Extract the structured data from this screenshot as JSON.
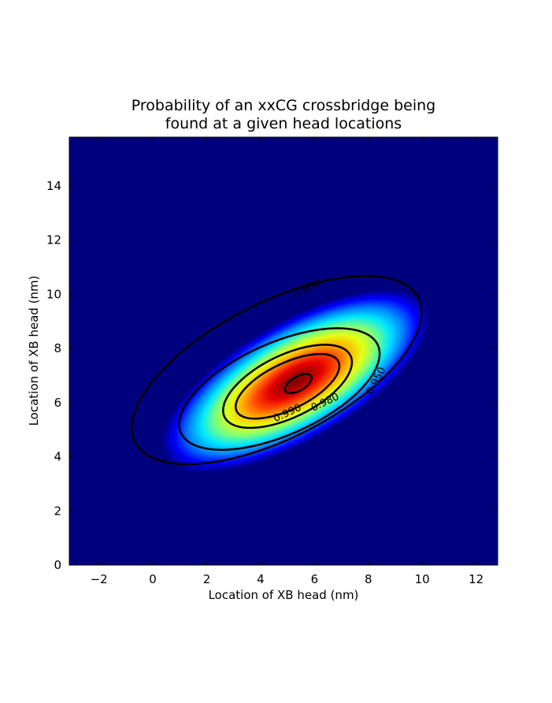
{
  "chart_data": {
    "type": "heatmap",
    "title_lines": [
      "Probability of an xxCG crossbridge being",
      "found at a given head locations"
    ],
    "xlabel": "Location of XB head (nm)",
    "ylabel": "Location of XB head (nm)",
    "xlim": [
      -3.1,
      12.8
    ],
    "ylim": [
      0,
      15.8
    ],
    "x_ticks": [
      -2,
      0,
      2,
      4,
      6,
      8,
      10,
      12
    ],
    "x_tick_labels": [
      "−2",
      "0",
      "2",
      "4",
      "6",
      "8",
      "10",
      "12"
    ],
    "y_ticks": [
      0,
      2,
      4,
      6,
      8,
      10,
      12,
      14
    ],
    "y_tick_labels": [
      "0",
      "2",
      "4",
      "6",
      "8",
      "10",
      "12",
      "14"
    ],
    "colormap": "jet",
    "background_color": "#00007f",
    "distribution": {
      "peak": [
        5.3,
        6.8
      ],
      "ellipse": {
        "angle_deg": 30,
        "semi_major": 5.6,
        "semi_minor": 2.2
      }
    },
    "contour_levels": [
      "0.900",
      "0.950",
      "0.980",
      "0.990"
    ],
    "contours": [
      {
        "level": "0.900",
        "label_at": [
          5.7,
          10.2
        ]
      },
      {
        "level": "0.950",
        "label_at": [
          8.3,
          6.8
        ]
      },
      {
        "level": "0.980",
        "label_at": [
          6.4,
          6.0
        ]
      },
      {
        "level": "0.990",
        "label_at": [
          5.0,
          5.6
        ]
      },
      {
        "level": "",
        "label_at": null
      }
    ],
    "grid": false,
    "legend": "none"
  }
}
